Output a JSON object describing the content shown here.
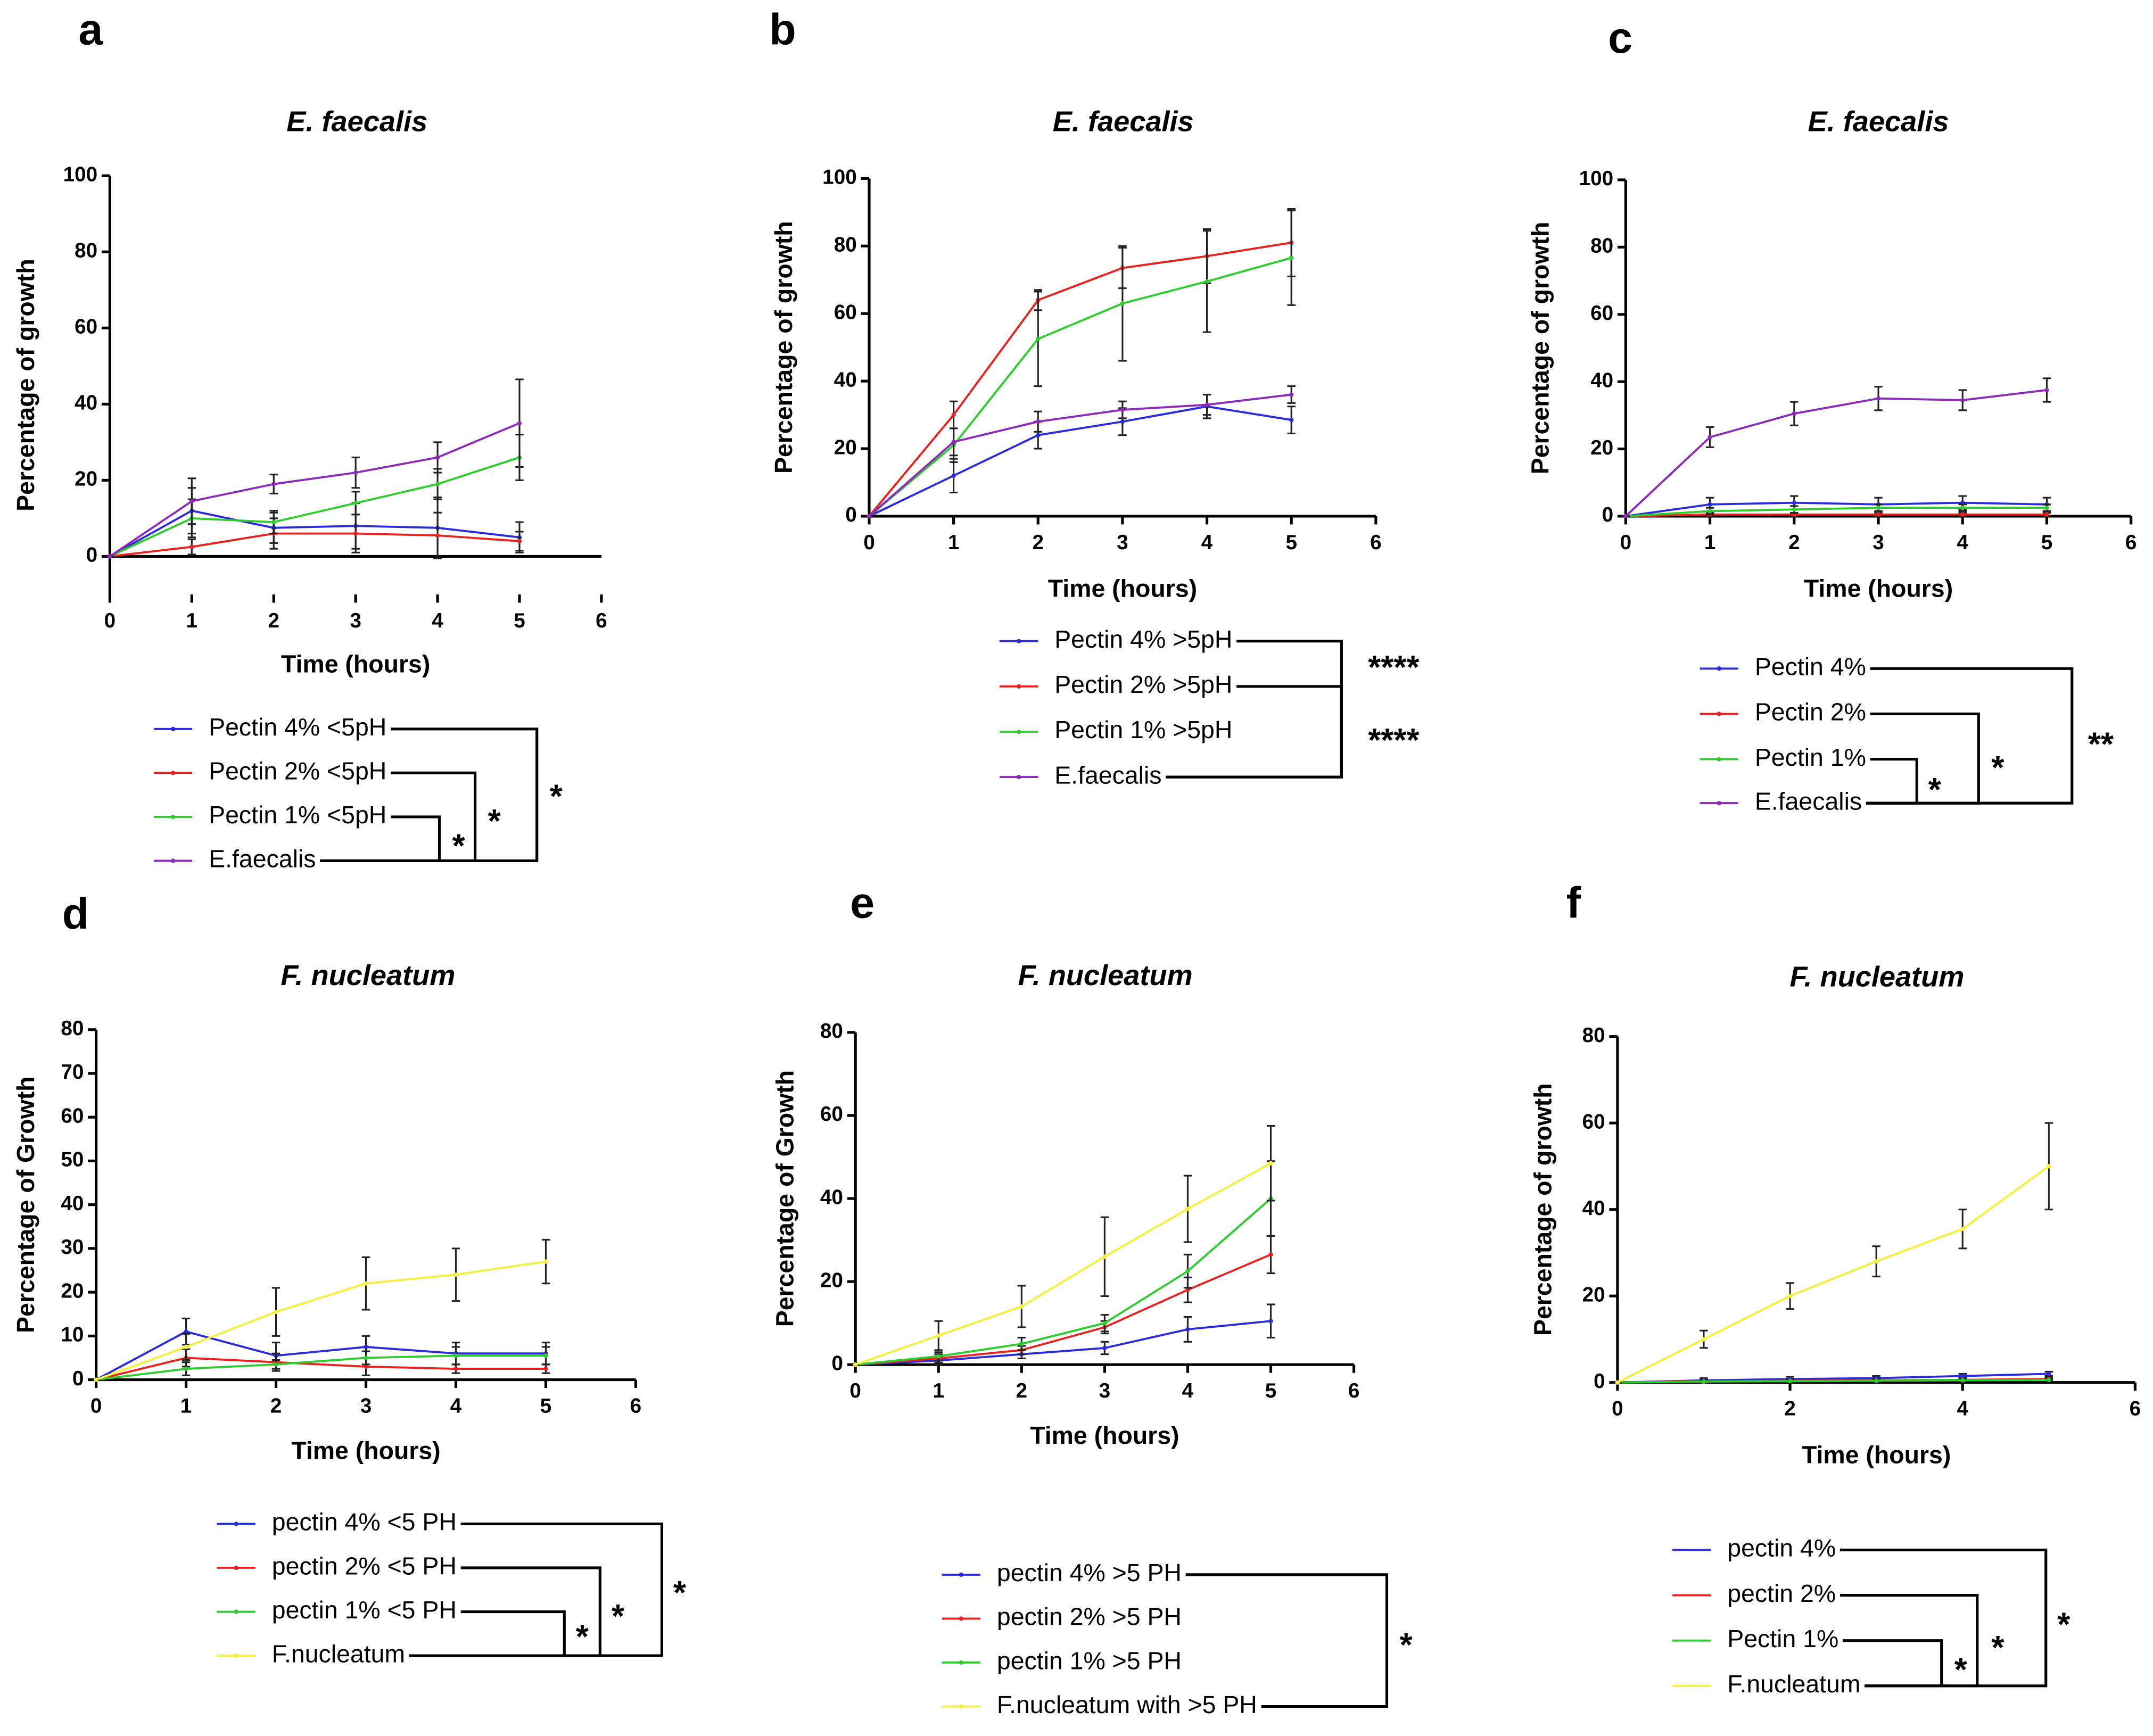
{
  "chart_data": [
    {
      "type": "line",
      "label": "a",
      "title": "E. faecalis",
      "xlabel": "Time (hours)",
      "ylabel": "Percentage of growth",
      "x": [
        0,
        1,
        2,
        3,
        4,
        5
      ],
      "xlim": [
        0,
        6
      ],
      "xticks": [
        0,
        1,
        2,
        3,
        4,
        5,
        6
      ],
      "ylim": [
        -10,
        100
      ],
      "yticks": [
        0,
        20,
        40,
        60,
        80,
        100
      ],
      "series": [
        {
          "name": "Pectin 4% <5pH",
          "color": "#2b2bd9",
          "values": [
            0,
            12,
            7.5,
            8,
            7.5,
            5
          ],
          "errors": [
            0,
            6,
            4,
            6,
            8,
            4
          ]
        },
        {
          "name": "Pectin 2% <5pH",
          "color": "#e8231f",
          "values": [
            0,
            2.5,
            6,
            6,
            5.5,
            4
          ],
          "errors": [
            0,
            2,
            4,
            5,
            6,
            2.5
          ]
        },
        {
          "name": "Pectin 1% <5pH",
          "color": "#2ecc2e",
          "values": [
            0,
            10,
            9,
            14,
            19,
            26
          ],
          "errors": [
            0,
            5,
            3,
            3,
            4,
            6
          ]
        },
        {
          "name": "E.faecalis",
          "color": "#8b2bb8",
          "values": [
            0,
            14.5,
            19,
            22,
            26,
            35
          ],
          "errors": [
            0,
            6,
            2.5,
            4,
            4,
            11.5
          ]
        }
      ],
      "annotations": [
        "*",
        "*",
        "*"
      ]
    },
    {
      "type": "line",
      "label": "b",
      "title": "E. faecalis",
      "xlabel": "Time (hours)",
      "ylabel": "Percentage of growth",
      "x": [
        0,
        1,
        2,
        3,
        4,
        5
      ],
      "xlim": [
        0,
        6
      ],
      "xticks": [
        0,
        1,
        2,
        3,
        4,
        5,
        6
      ],
      "ylim": [
        0,
        100
      ],
      "yticks": [
        0,
        20,
        40,
        60,
        80,
        100
      ],
      "series": [
        {
          "name": "Pectin 4% >5pH",
          "color": "#2b2bd9",
          "values": [
            0,
            12,
            24,
            28,
            32.5,
            28.5
          ],
          "errors": [
            0,
            5,
            4,
            4,
            3.5,
            4
          ]
        },
        {
          "name": "Pectin 2% >5pH",
          "color": "#e8231f",
          "values": [
            0,
            30,
            64,
            73.5,
            77,
            81
          ],
          "errors": [
            0,
            4,
            3,
            6,
            8,
            10
          ]
        },
        {
          "name": "Pectin 1% >5pH",
          "color": "#2ecc2e",
          "values": [
            0,
            21,
            52.5,
            63,
            69.5,
            76.5
          ],
          "errors": [
            0,
            5,
            14,
            17,
            15,
            14
          ]
        },
        {
          "name": "E.faecalis",
          "color": "#8b2bb8",
          "values": [
            0,
            22,
            28,
            31.5,
            33,
            36
          ],
          "errors": [
            0,
            4,
            3,
            2.5,
            3,
            2.5
          ]
        }
      ],
      "annotations": [
        "****",
        "****"
      ]
    },
    {
      "type": "line",
      "label": "c",
      "title": "E. faecalis",
      "xlabel": "Time (hours)",
      "ylabel": "Percentage of growth",
      "x": [
        0,
        1,
        2,
        3,
        4,
        5
      ],
      "xlim": [
        0,
        6
      ],
      "xticks": [
        0,
        1,
        2,
        3,
        4,
        5,
        6
      ],
      "ylim": [
        0,
        100
      ],
      "yticks": [
        0,
        20,
        40,
        60,
        80,
        100
      ],
      "series": [
        {
          "name": "Pectin 4%",
          "color": "#2b2bd9",
          "values": [
            0,
            3.5,
            4,
            3.5,
            4,
            3.5
          ],
          "errors": [
            0,
            2,
            2,
            2,
            2,
            2
          ]
        },
        {
          "name": "Pectin 2%",
          "color": "#e8231f",
          "values": [
            0,
            0.5,
            0.5,
            0.5,
            0.5,
            0.5
          ],
          "errors": [
            0,
            0.5,
            0.5,
            0.5,
            0.5,
            0.5
          ]
        },
        {
          "name": "Pectin 1%",
          "color": "#2ecc2e",
          "values": [
            0,
            1.5,
            2,
            2.5,
            2.5,
            2.5
          ],
          "errors": [
            0,
            1,
            1,
            1,
            1,
            1
          ]
        },
        {
          "name": "E.faecalis",
          "color": "#8b2bb8",
          "values": [
            0,
            23.5,
            30.5,
            35,
            34.5,
            37.5
          ],
          "errors": [
            0,
            3,
            3.5,
            3.5,
            3,
            3.5
          ]
        }
      ],
      "annotations": [
        "*",
        "*",
        "**"
      ]
    },
    {
      "type": "line",
      "label": "d",
      "title": "F. nucleatum",
      "xlabel": "Time (hours)",
      "ylabel": "Percentage of Growth",
      "x": [
        0,
        1,
        2,
        3,
        4,
        5
      ],
      "xlim": [
        0,
        6
      ],
      "xticks": [
        0,
        1,
        2,
        3,
        4,
        5,
        6
      ],
      "ylim": [
        0,
        80
      ],
      "yticks": [
        0,
        10,
        20,
        30,
        40,
        50,
        60,
        70,
        80
      ],
      "series": [
        {
          "name": "pectin 4% <5 PH",
          "color": "#2b2bd9",
          "values": [
            0,
            11,
            5.5,
            7.5,
            6,
            6
          ],
          "errors": [
            0,
            3,
            3,
            2.5,
            2.5,
            2.5
          ]
        },
        {
          "name": "pectin 2% <5 PH",
          "color": "#e8231f",
          "values": [
            0,
            5,
            4,
            3,
            2.5,
            2.5
          ],
          "errors": [
            0,
            2,
            2,
            2,
            1,
            1
          ]
        },
        {
          "name": "pectin 1% <5 PH",
          "color": "#2ecc2e",
          "values": [
            0,
            2.5,
            3.5,
            5,
            5.5,
            5.5
          ],
          "errors": [
            0,
            1.5,
            1,
            1.5,
            2,
            2
          ]
        },
        {
          "name": "F.nucleatum",
          "color": "#f5f03c",
          "values": [
            0,
            7.5,
            15.5,
            22,
            24,
            27
          ],
          "errors": [
            0,
            3,
            5.5,
            6,
            6,
            5
          ]
        }
      ],
      "annotations": [
        "*",
        "*",
        "*"
      ]
    },
    {
      "type": "line",
      "label": "e",
      "title": "F. nucleatum",
      "xlabel": "Time (hours)",
      "ylabel": "Percentage of Growth",
      "x": [
        0,
        1,
        2,
        3,
        4,
        5
      ],
      "xlim": [
        0,
        6
      ],
      "xticks": [
        0,
        1,
        2,
        3,
        4,
        5,
        6
      ],
      "ylim": [
        0,
        80
      ],
      "yticks": [
        0,
        20,
        40,
        60,
        80
      ],
      "series": [
        {
          "name": "pectin 4% >5 PH",
          "color": "#2b2bd9",
          "values": [
            0,
            1,
            2.5,
            4,
            8.5,
            10.5
          ],
          "errors": [
            0,
            1,
            1,
            1.5,
            3,
            4
          ]
        },
        {
          "name": "pectin 2% >5 PH",
          "color": "#e8231f",
          "values": [
            0,
            1.5,
            3.5,
            9,
            18,
            26.5
          ],
          "errors": [
            0,
            1,
            1,
            1.5,
            3,
            4.5
          ]
        },
        {
          "name": "pectin 1% >5 PH",
          "color": "#2ecc2e",
          "values": [
            0,
            2,
            5,
            10,
            22.5,
            40
          ],
          "errors": [
            0,
            1,
            1.5,
            2,
            4,
            9
          ]
        },
        {
          "name": "F.nucleatum with >5 PH",
          "color": "#f5f03c",
          "values": [
            0,
            7,
            14,
            26,
            37.5,
            48.5
          ],
          "errors": [
            0,
            3.5,
            5,
            9.5,
            8,
            9
          ]
        }
      ],
      "annotations": [
        "*"
      ]
    },
    {
      "type": "line",
      "label": "f",
      "title": "F. nucleatum",
      "xlabel": "Time (hours)",
      "ylabel": "Percentage of growth",
      "x": [
        0,
        1,
        2,
        3,
        4,
        5
      ],
      "xlim": [
        0,
        6
      ],
      "xticks": [
        0,
        2,
        4,
        6
      ],
      "ylim": [
        0,
        80
      ],
      "yticks": [
        0,
        20,
        40,
        60,
        80
      ],
      "series": [
        {
          "name": "pectin 4%",
          "color": "#2b2bd9",
          "values": [
            0,
            0.5,
            0.8,
            1,
            1.5,
            2
          ],
          "errors": [
            0,
            0.5,
            0.5,
            0.5,
            0.5,
            0.5
          ]
        },
        {
          "name": "pectin 2%",
          "color": "#e8231f",
          "values": [
            0,
            0.3,
            0.4,
            0.5,
            0.6,
            0.8
          ],
          "errors": [
            0,
            0.3,
            0.3,
            0.3,
            0.3,
            0.3
          ]
        },
        {
          "name": "Pectin 1%",
          "color": "#2ecc2e",
          "values": [
            0,
            0.2,
            0.3,
            0.4,
            0.5,
            0.6
          ],
          "errors": [
            0,
            0.3,
            0.3,
            0.3,
            0.3,
            0.3
          ]
        },
        {
          "name": "F.nucleatum",
          "color": "#f5f03c",
          "values": [
            0,
            10,
            20,
            28,
            35.5,
            50
          ],
          "errors": [
            0,
            2,
            3,
            3.5,
            4.5,
            10
          ]
        }
      ],
      "annotations": [
        "*",
        "*",
        "*"
      ]
    }
  ]
}
